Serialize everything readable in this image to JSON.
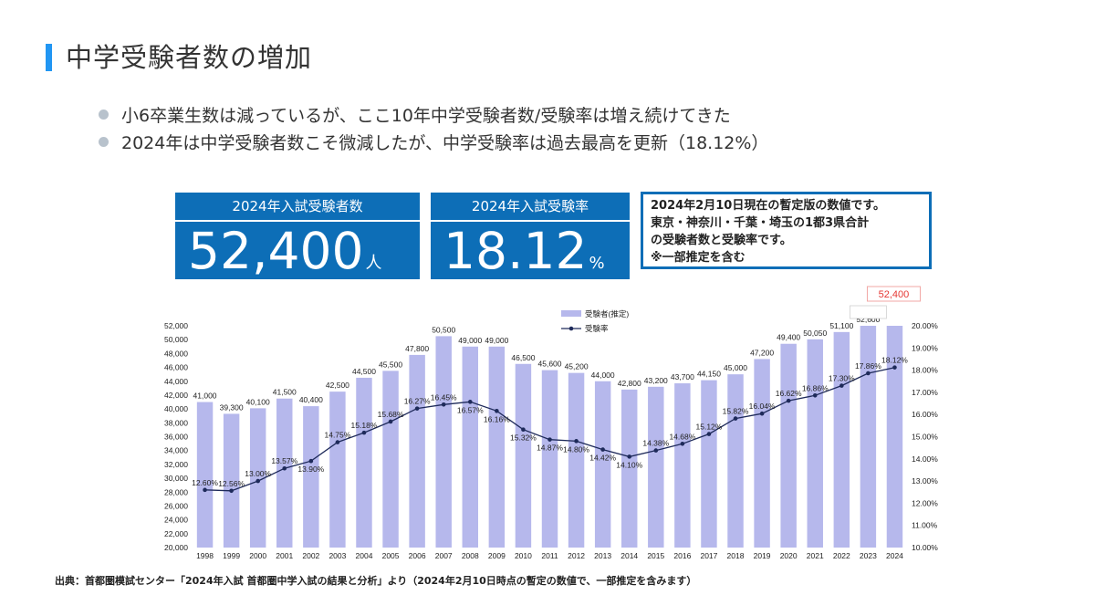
{
  "page": {
    "title": "中学受験者数の増加",
    "bullets": [
      "小6卒業生数は減っているが、ここ10年中学受験者数/受験率は増え続けてきた",
      "2024年は中学受験者数こそ微減したが、中学受験率は過去最高を更新（18.12%）"
    ],
    "footnote": "出典：首都圏模試センター「2024年入試 首都圏中学入試の結果と分析」より（2024年2月10日時点の暫定の数値で、一部推定を含みます）"
  },
  "stats": {
    "examinees": {
      "label": "2024年入試受験者数",
      "value": "52,400",
      "unit": "人"
    },
    "rate": {
      "label": "2024年入試受験率",
      "value": "18.12",
      "unit": "%"
    }
  },
  "note": {
    "lines": [
      "2024年2月10日現在の暫定版の数値です。",
      "東京・神奈川・千葉・埼玉の1都3県合計",
      "の受験者数と受験率です。",
      "※一部推定を含む"
    ]
  },
  "colors": {
    "accent": "#2196f3",
    "stat_box": "#0d6eb7",
    "bar": "#b6b8ec",
    "line": "#1e2a5a",
    "highlight": "#e53935"
  },
  "chart_data": {
    "type": "bar",
    "categories": [
      "1998",
      "1999",
      "2000",
      "2001",
      "2002",
      "2003",
      "2004",
      "2005",
      "2006",
      "2007",
      "2008",
      "2009",
      "2010",
      "2011",
      "2012",
      "2013",
      "2014",
      "2015",
      "2016",
      "2017",
      "2018",
      "2019",
      "2020",
      "2021",
      "2022",
      "2023",
      "2024"
    ],
    "series": [
      {
        "name": "受験者(推定)",
        "type": "bar",
        "axis": "left",
        "values": [
          41000,
          39300,
          40100,
          41500,
          40400,
          42500,
          44500,
          45500,
          47800,
          50500,
          49000,
          49000,
          46500,
          45600,
          45200,
          44000,
          42800,
          43200,
          43700,
          44150,
          45000,
          47200,
          49400,
          50050,
          51100,
          52600,
          52400
        ],
        "labels": [
          "41,000",
          "39,300",
          "40,100",
          "41,500",
          "40,400",
          "42,500",
          "44,500",
          "45,500",
          "47,800",
          "50,500",
          "49,000",
          "49,000",
          "46,500",
          "45,600",
          "45,200",
          "44,000",
          "42,800",
          "43,200",
          "43,700",
          "44,150",
          "45,000",
          "47,200",
          "49,400",
          "50,050",
          "51,100",
          "52,600",
          "52,400"
        ]
      },
      {
        "name": "受験率",
        "type": "line",
        "axis": "right",
        "values": [
          12.6,
          12.56,
          13.0,
          13.57,
          13.9,
          14.75,
          15.18,
          15.68,
          16.27,
          16.45,
          16.57,
          16.16,
          15.32,
          14.87,
          14.8,
          14.42,
          14.1,
          14.38,
          14.68,
          15.12,
          15.82,
          16.04,
          16.62,
          16.86,
          17.3,
          17.86,
          18.12
        ],
        "labels": [
          "12.60%",
          "12.56%",
          "13.00%",
          "13.57%",
          "13.90%",
          "14.75%",
          "15.18%",
          "15.68%",
          "16.27%",
          "16.45%",
          "16.57%",
          "16.16%",
          "15.32%",
          "14.87%",
          "14.80%",
          "14.42%",
          "14.10%",
          "14.38%",
          "14.68%",
          "15.12%",
          "15.82%",
          "16.04%",
          "16.62%",
          "16.86%",
          "17.30%",
          "17.86%",
          "18.12%"
        ]
      }
    ],
    "y_left": {
      "range": [
        20000,
        52000
      ],
      "ticks": [
        20000,
        22000,
        24000,
        26000,
        28000,
        30000,
        32000,
        34000,
        36000,
        38000,
        40000,
        42000,
        44000,
        46000,
        48000,
        50000,
        52000
      ],
      "tick_labels": [
        "20,000",
        "22,000",
        "24,000",
        "26,000",
        "28,000",
        "30,000",
        "32,000",
        "34,000",
        "36,000",
        "38,000",
        "40,000",
        "42,000",
        "44,000",
        "46,000",
        "48,000",
        "50,000",
        "52,000"
      ]
    },
    "y_right": {
      "range": [
        10,
        20
      ],
      "ticks": [
        10,
        11,
        12,
        13,
        14,
        15,
        16,
        17,
        18,
        19,
        20
      ],
      "tick_labels": [
        "10.00%",
        "11.00%",
        "12.00%",
        "13.00%",
        "14.00%",
        "15.00%",
        "16.00%",
        "17.00%",
        "18.00%",
        "19.00%",
        "20.00%"
      ]
    },
    "legend": {
      "position": "top-center",
      "items": [
        "受験者(推定)",
        "受験率"
      ]
    },
    "highlight": {
      "category": "2024",
      "label": "52,400"
    },
    "grid": false
  }
}
